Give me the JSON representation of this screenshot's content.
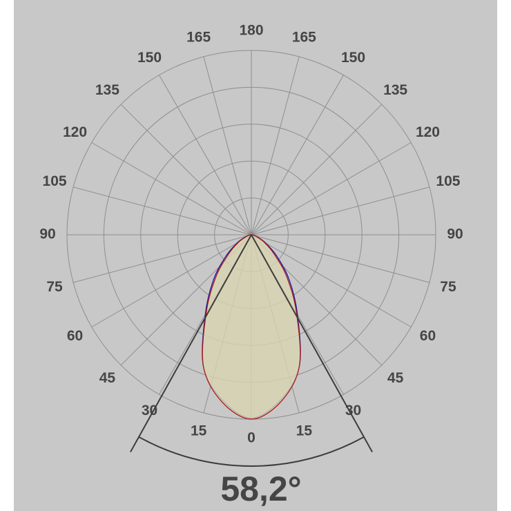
{
  "chart_data": {
    "type": "polar",
    "x": [
      -90,
      -80,
      -70,
      -60,
      -50,
      -40,
      -30,
      -20,
      -10,
      0,
      10,
      20,
      30,
      40,
      50,
      60,
      70,
      80,
      90
    ],
    "series": [
      {
        "color": "#1c1ca0",
        "values": [
          0,
          0.05,
          0.18,
          0.45,
          0.9,
          1.6,
          2.5,
          3.8,
          4.55,
          4.97,
          4.55,
          3.8,
          2.5,
          1.6,
          0.9,
          0.45,
          0.18,
          0.05,
          0
        ]
      },
      {
        "color": "#a81818",
        "fill": "#d9d5b2",
        "values": [
          0,
          0.05,
          0.15,
          0.4,
          0.8,
          1.5,
          2.45,
          3.8,
          4.6,
          5,
          4.6,
          3.8,
          2.45,
          1.5,
          0.8,
          0.4,
          0.15,
          0.05,
          0
        ]
      }
    ],
    "rlim": [
      0,
      5
    ],
    "rticks": [
      1,
      2,
      3,
      4,
      5
    ],
    "angle_ticks": [
      0,
      15,
      30,
      45,
      60,
      75,
      90,
      105,
      120,
      135,
      150,
      165,
      180
    ],
    "beam_angle": {
      "value": 58.2,
      "label": "58,2°"
    },
    "grid": true
  }
}
